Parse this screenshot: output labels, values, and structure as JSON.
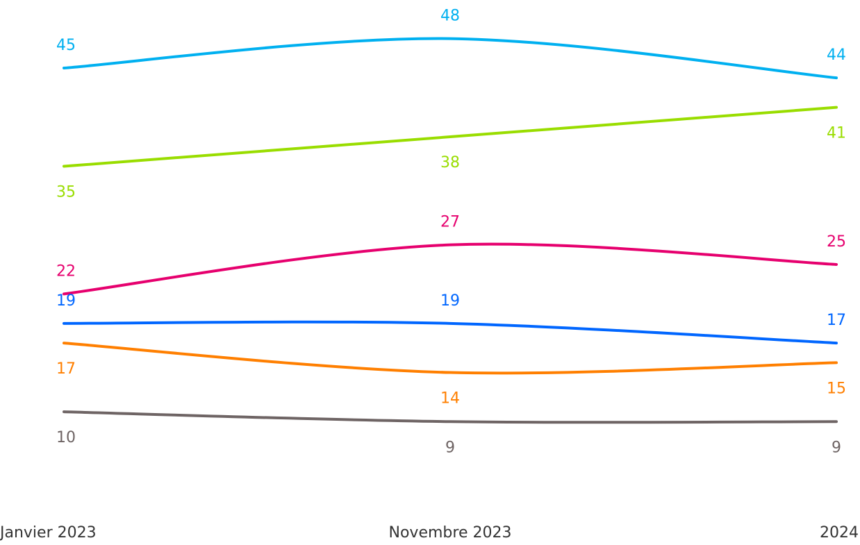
{
  "chart_data": {
    "type": "line",
    "categories": [
      "Janvier 2023",
      "Novembre 2023",
      "2024"
    ],
    "ylim": [
      0,
      50
    ],
    "smooth": true,
    "series": [
      {
        "color": "#00b0f0",
        "values": [
          45,
          48,
          44
        ],
        "label_position": "above"
      },
      {
        "color": "#99dd00",
        "values": [
          35,
          38,
          41
        ],
        "label_position": "below"
      },
      {
        "color": "#e6006e",
        "values": [
          22,
          27,
          25
        ],
        "label_position": "above"
      },
      {
        "color": "#0066ff",
        "values": [
          19,
          19,
          17
        ],
        "label_position": "above"
      },
      {
        "color": "#ff7f00",
        "values": [
          17,
          14,
          15
        ],
        "label_position": "below"
      },
      {
        "color": "#6e6464",
        "values": [
          10,
          9,
          9
        ],
        "label_position": "below"
      }
    ]
  }
}
